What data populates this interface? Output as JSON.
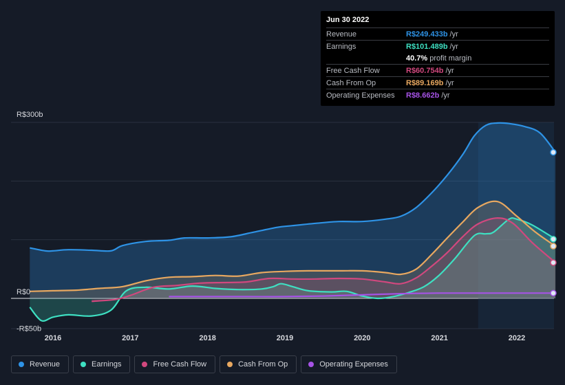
{
  "chart_data": {
    "type": "area",
    "y_unit_prefix": "R$",
    "ylim": [
      -50,
      300
    ],
    "y_ticks": [
      {
        "value": 300,
        "label": "R$300b"
      },
      {
        "value": 0,
        "label": "R$0"
      },
      {
        "value": -50,
        "label": "-R$50b"
      }
    ],
    "xlim": [
      2015.7,
      2022.5
    ],
    "x_ticks": [
      {
        "value": 2016,
        "label": "2016"
      },
      {
        "value": 2017,
        "label": "2017"
      },
      {
        "value": 2018,
        "label": "2018"
      },
      {
        "value": 2019,
        "label": "2019"
      },
      {
        "value": 2020,
        "label": "2020"
      },
      {
        "value": 2021,
        "label": "2021"
      },
      {
        "value": 2022,
        "label": "2022"
      }
    ],
    "highlight_start": 2021.5,
    "series": [
      {
        "name": "Revenue",
        "color": "#2e93e6",
        "points": [
          [
            2015.7,
            86
          ],
          [
            2015.9,
            81
          ],
          [
            2016.0,
            81
          ],
          [
            2016.2,
            83
          ],
          [
            2016.5,
            82
          ],
          [
            2016.75,
            81
          ],
          [
            2016.9,
            90
          ],
          [
            2017.2,
            97
          ],
          [
            2017.5,
            99
          ],
          [
            2017.7,
            103
          ],
          [
            2018.0,
            103
          ],
          [
            2018.3,
            105
          ],
          [
            2018.6,
            113
          ],
          [
            2018.9,
            121
          ],
          [
            2019.1,
            124
          ],
          [
            2019.4,
            128
          ],
          [
            2019.7,
            131
          ],
          [
            2020.0,
            131
          ],
          [
            2020.3,
            135
          ],
          [
            2020.5,
            140
          ],
          [
            2020.7,
            155
          ],
          [
            2020.9,
            180
          ],
          [
            2021.1,
            210
          ],
          [
            2021.3,
            245
          ],
          [
            2021.45,
            277
          ],
          [
            2021.6,
            295
          ],
          [
            2021.75,
            299
          ],
          [
            2021.9,
            298
          ],
          [
            2022.1,
            293
          ],
          [
            2022.3,
            282
          ],
          [
            2022.5,
            249
          ]
        ]
      },
      {
        "name": "Earnings",
        "color": "#3ee0c2",
        "points": [
          [
            2015.7,
            -15
          ],
          [
            2015.85,
            -38
          ],
          [
            2016.0,
            -32
          ],
          [
            2016.2,
            -28
          ],
          [
            2016.5,
            -30
          ],
          [
            2016.75,
            -20
          ],
          [
            2016.95,
            13
          ],
          [
            2017.2,
            19
          ],
          [
            2017.5,
            16
          ],
          [
            2017.8,
            21
          ],
          [
            2018.1,
            17
          ],
          [
            2018.4,
            15
          ],
          [
            2018.7,
            16
          ],
          [
            2018.85,
            20
          ],
          [
            2018.95,
            25
          ],
          [
            2019.1,
            20
          ],
          [
            2019.3,
            13
          ],
          [
            2019.6,
            11
          ],
          [
            2019.8,
            12
          ],
          [
            2020.0,
            4
          ],
          [
            2020.2,
            0
          ],
          [
            2020.4,
            3
          ],
          [
            2020.6,
            10
          ],
          [
            2020.8,
            20
          ],
          [
            2021.0,
            40
          ],
          [
            2021.2,
            68
          ],
          [
            2021.45,
            107
          ],
          [
            2021.6,
            110
          ],
          [
            2021.7,
            113
          ],
          [
            2021.9,
            135
          ],
          [
            2022.0,
            135
          ],
          [
            2022.2,
            125
          ],
          [
            2022.5,
            101
          ]
        ]
      },
      {
        "name": "Free Cash Flow",
        "color": "#d1487e",
        "points": [
          [
            2016.5,
            -5
          ],
          [
            2016.8,
            -2
          ],
          [
            2017.0,
            5
          ],
          [
            2017.3,
            19
          ],
          [
            2017.6,
            22
          ],
          [
            2017.9,
            26
          ],
          [
            2018.2,
            27
          ],
          [
            2018.5,
            28
          ],
          [
            2018.8,
            34
          ],
          [
            2019.1,
            33
          ],
          [
            2019.4,
            33
          ],
          [
            2019.7,
            34
          ],
          [
            2020.0,
            33
          ],
          [
            2020.3,
            28
          ],
          [
            2020.5,
            25
          ],
          [
            2020.7,
            35
          ],
          [
            2020.9,
            55
          ],
          [
            2021.1,
            78
          ],
          [
            2021.3,
            105
          ],
          [
            2021.5,
            127
          ],
          [
            2021.75,
            137
          ],
          [
            2021.95,
            128
          ],
          [
            2022.2,
            95
          ],
          [
            2022.5,
            61
          ]
        ]
      },
      {
        "name": "Cash From Op",
        "color": "#e8a860",
        "points": [
          [
            2015.7,
            12
          ],
          [
            2016.0,
            13
          ],
          [
            2016.3,
            14
          ],
          [
            2016.6,
            17
          ],
          [
            2016.9,
            20
          ],
          [
            2017.2,
            30
          ],
          [
            2017.5,
            36
          ],
          [
            2017.8,
            37
          ],
          [
            2018.1,
            39
          ],
          [
            2018.4,
            38
          ],
          [
            2018.7,
            44
          ],
          [
            2019.0,
            46
          ],
          [
            2019.3,
            47
          ],
          [
            2019.7,
            47
          ],
          [
            2020.0,
            47
          ],
          [
            2020.3,
            44
          ],
          [
            2020.5,
            41
          ],
          [
            2020.7,
            50
          ],
          [
            2020.9,
            75
          ],
          [
            2021.1,
            103
          ],
          [
            2021.3,
            130
          ],
          [
            2021.5,
            155
          ],
          [
            2021.75,
            165
          ],
          [
            2022.0,
            140
          ],
          [
            2022.25,
            112
          ],
          [
            2022.5,
            89
          ]
        ]
      },
      {
        "name": "Operating Expenses",
        "color": "#a653e6",
        "points": [
          [
            2017.5,
            3
          ],
          [
            2018.0,
            3
          ],
          [
            2018.5,
            3
          ],
          [
            2019.0,
            3
          ],
          [
            2019.5,
            4
          ],
          [
            2020.0,
            6
          ],
          [
            2020.5,
            8
          ],
          [
            2021.0,
            9
          ],
          [
            2021.5,
            9
          ],
          [
            2022.0,
            9
          ],
          [
            2022.5,
            9
          ]
        ]
      }
    ]
  },
  "tooltip": {
    "date": "Jun 30 2022",
    "rows": [
      {
        "label": "Revenue",
        "value": "R$249.433b",
        "unit": "/yr",
        "color": "#2e93e6"
      },
      {
        "label": "Earnings",
        "value": "R$101.489b",
        "unit": "/yr",
        "color": "#3ee0c2"
      },
      {
        "label": "",
        "value": "40.7%",
        "unit": "profit margin",
        "color": "#ffffff"
      },
      {
        "label": "Free Cash Flow",
        "value": "R$60.754b",
        "unit": "/yr",
        "color": "#d1487e"
      },
      {
        "label": "Cash From Op",
        "value": "R$89.169b",
        "unit": "/yr",
        "color": "#e8a860"
      },
      {
        "label": "Operating Expenses",
        "value": "R$8.662b",
        "unit": "/yr",
        "color": "#a653e6"
      }
    ]
  },
  "legend": [
    {
      "label": "Revenue",
      "color": "#2e93e6"
    },
    {
      "label": "Earnings",
      "color": "#3ee0c2"
    },
    {
      "label": "Free Cash Flow",
      "color": "#d1487e"
    },
    {
      "label": "Cash From Op",
      "color": "#e8a860"
    },
    {
      "label": "Operating Expenses",
      "color": "#a653e6"
    }
  ]
}
